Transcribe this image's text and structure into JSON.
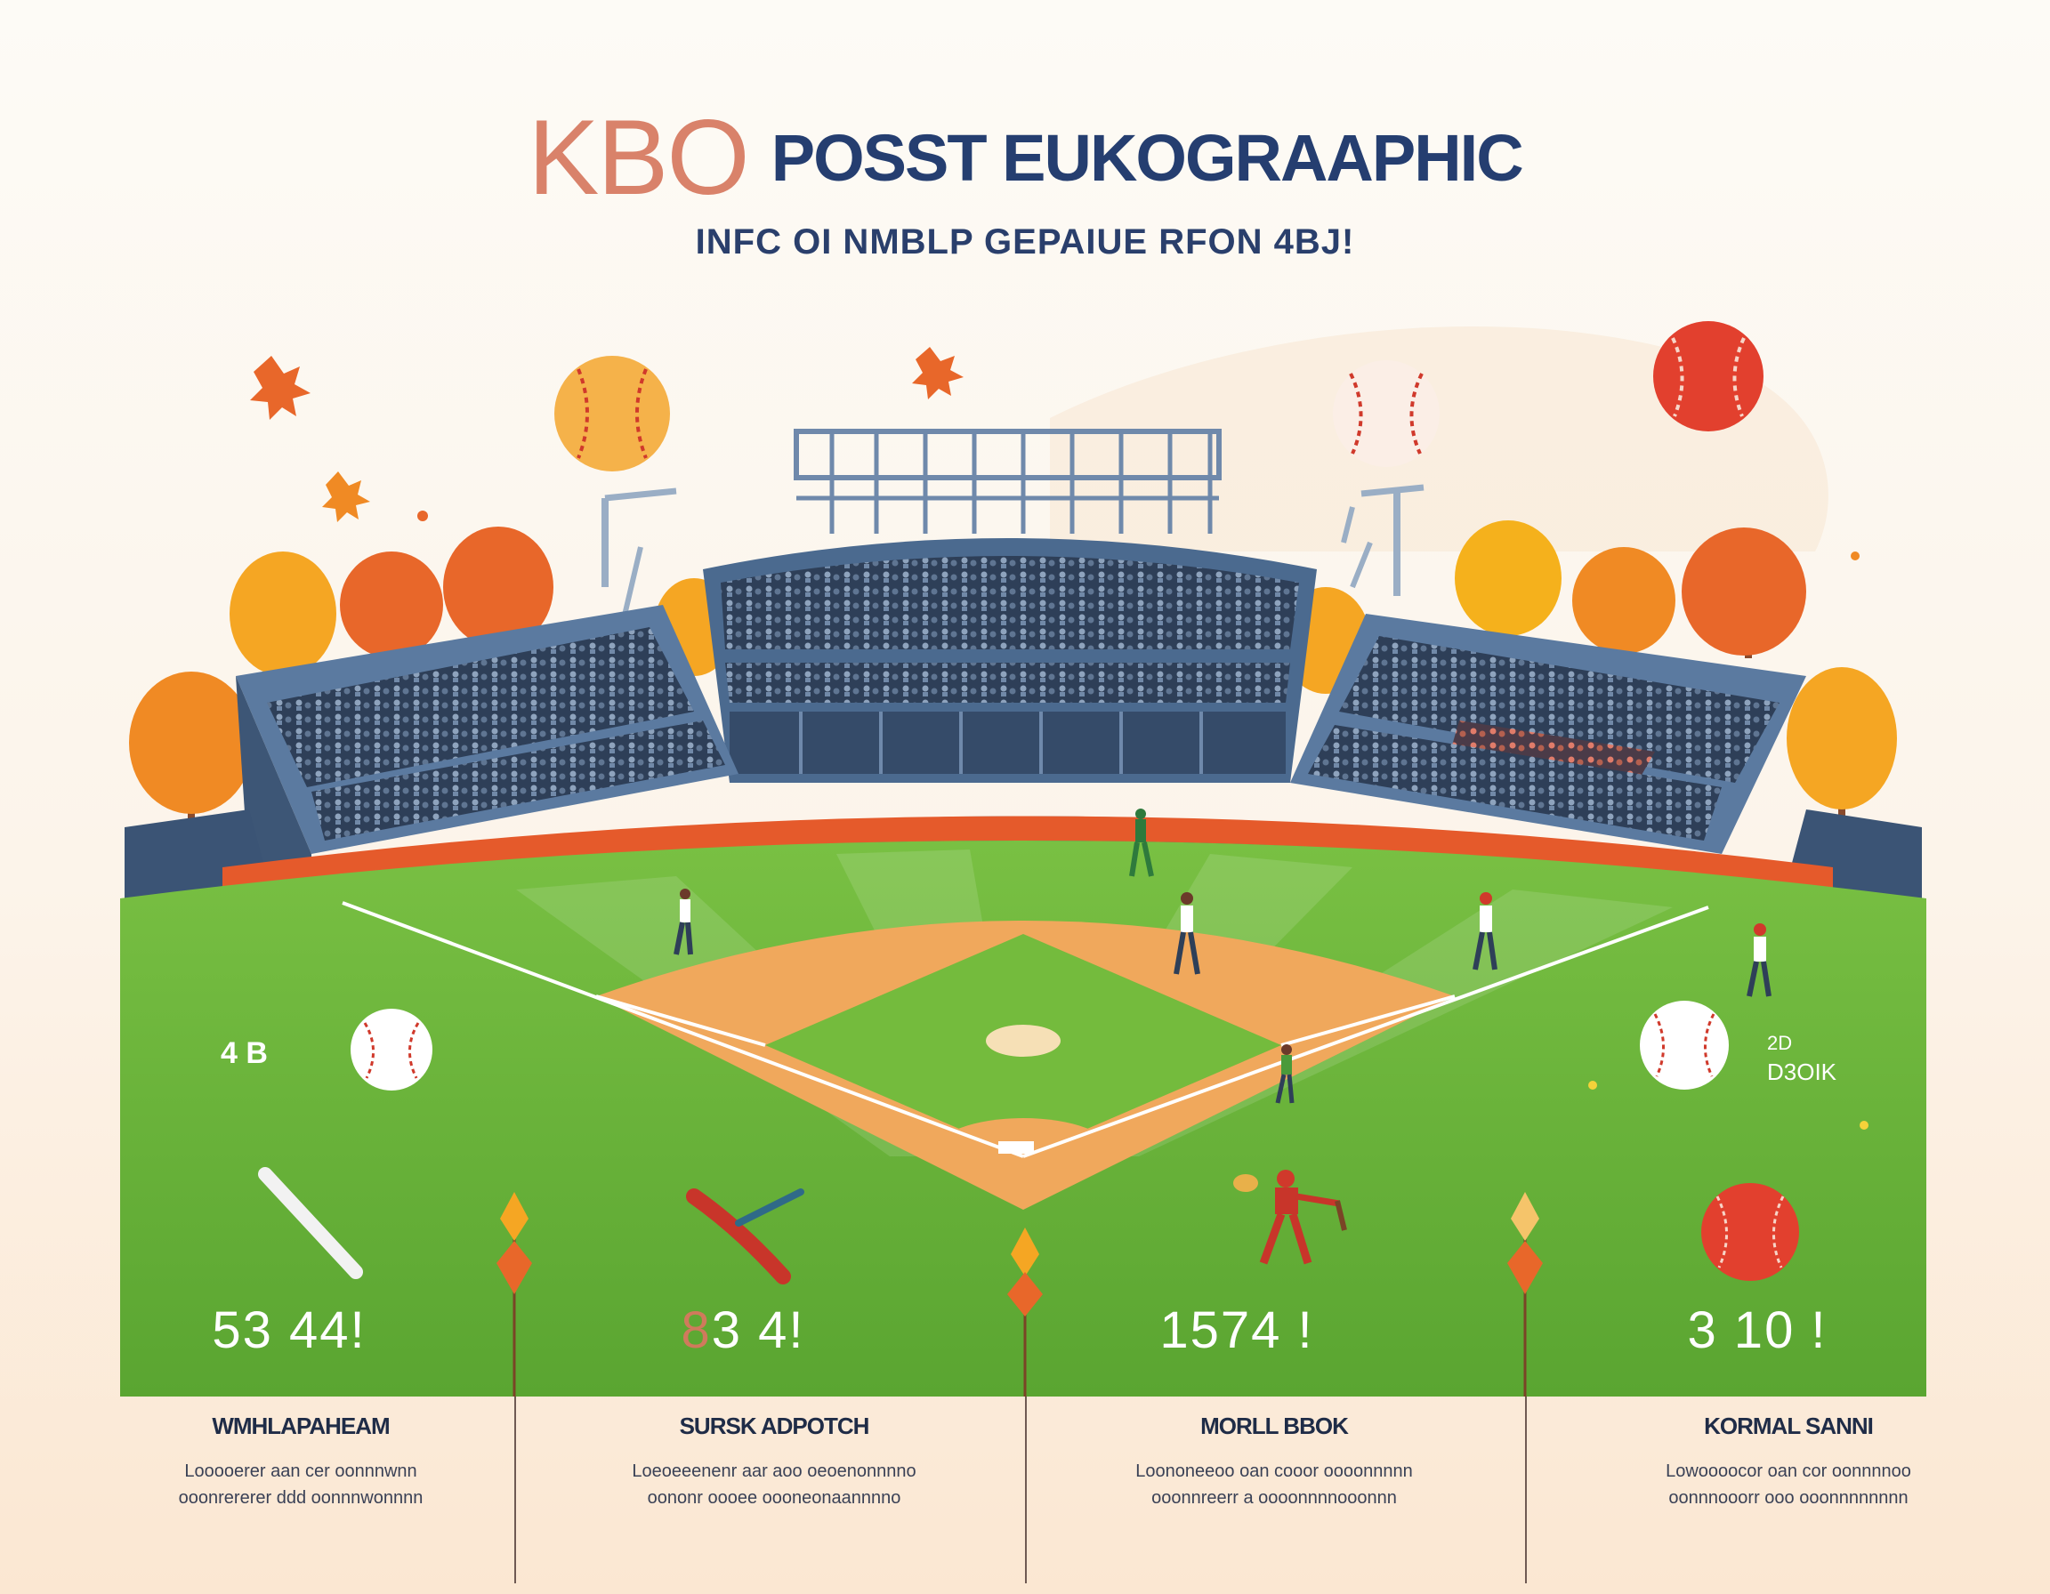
{
  "header": {
    "title_kbo": "KBO",
    "title_rest": "POSST EUKOGRAAPHIC",
    "subtitle": "INFC OI NMBLP GEPAIUE RFON 4BJ!"
  },
  "side_stats": {
    "left": "4 B",
    "right_line1": "2D",
    "right_line2": "D3OIK"
  },
  "stats": [
    {
      "value": "53 44!"
    },
    {
      "value_accent": "8",
      "value": "3 4!"
    },
    {
      "value": "1574 !"
    },
    {
      "value": "3 10 !"
    }
  ],
  "info_columns": [
    {
      "title": "WMHLAPAHEAM",
      "line1": "Looooerer aan cer oonnnwnn",
      "line2": "ooonrererer ddd oonnnwonnnn"
    },
    {
      "title": "SURSK ADPOTCH",
      "line1": "Loeoeeenenr aar aoo oeoenonnnno",
      "line2": "oononr oooee oooneonaannnno"
    },
    {
      "title": "MORLL BBOK",
      "line1": "Loononeeoo oan cooor oooonnnnn",
      "line2": "ooonnreerr a oooonnnnooonnn"
    },
    {
      "title": "KORMAL SANNI",
      "line1": "Lowoooocor oan cor oonnnnoo",
      "line2": "oonnnooorr ooo ooonnnnnnnn"
    }
  ],
  "colors": {
    "title_accent": "#d9826a",
    "title_main": "#253e70",
    "grass": "#6db63f",
    "infield": "#f0a85c",
    "stadium": "#4b6a8f",
    "tree_orange": "#f08a24",
    "ball_red": "#e2402e"
  },
  "icons": [
    "baseball-icon",
    "bat-icon",
    "maple-leaf-icon",
    "pennant-icon",
    "tree-icon",
    "light-tower-icon",
    "player-icon"
  ]
}
